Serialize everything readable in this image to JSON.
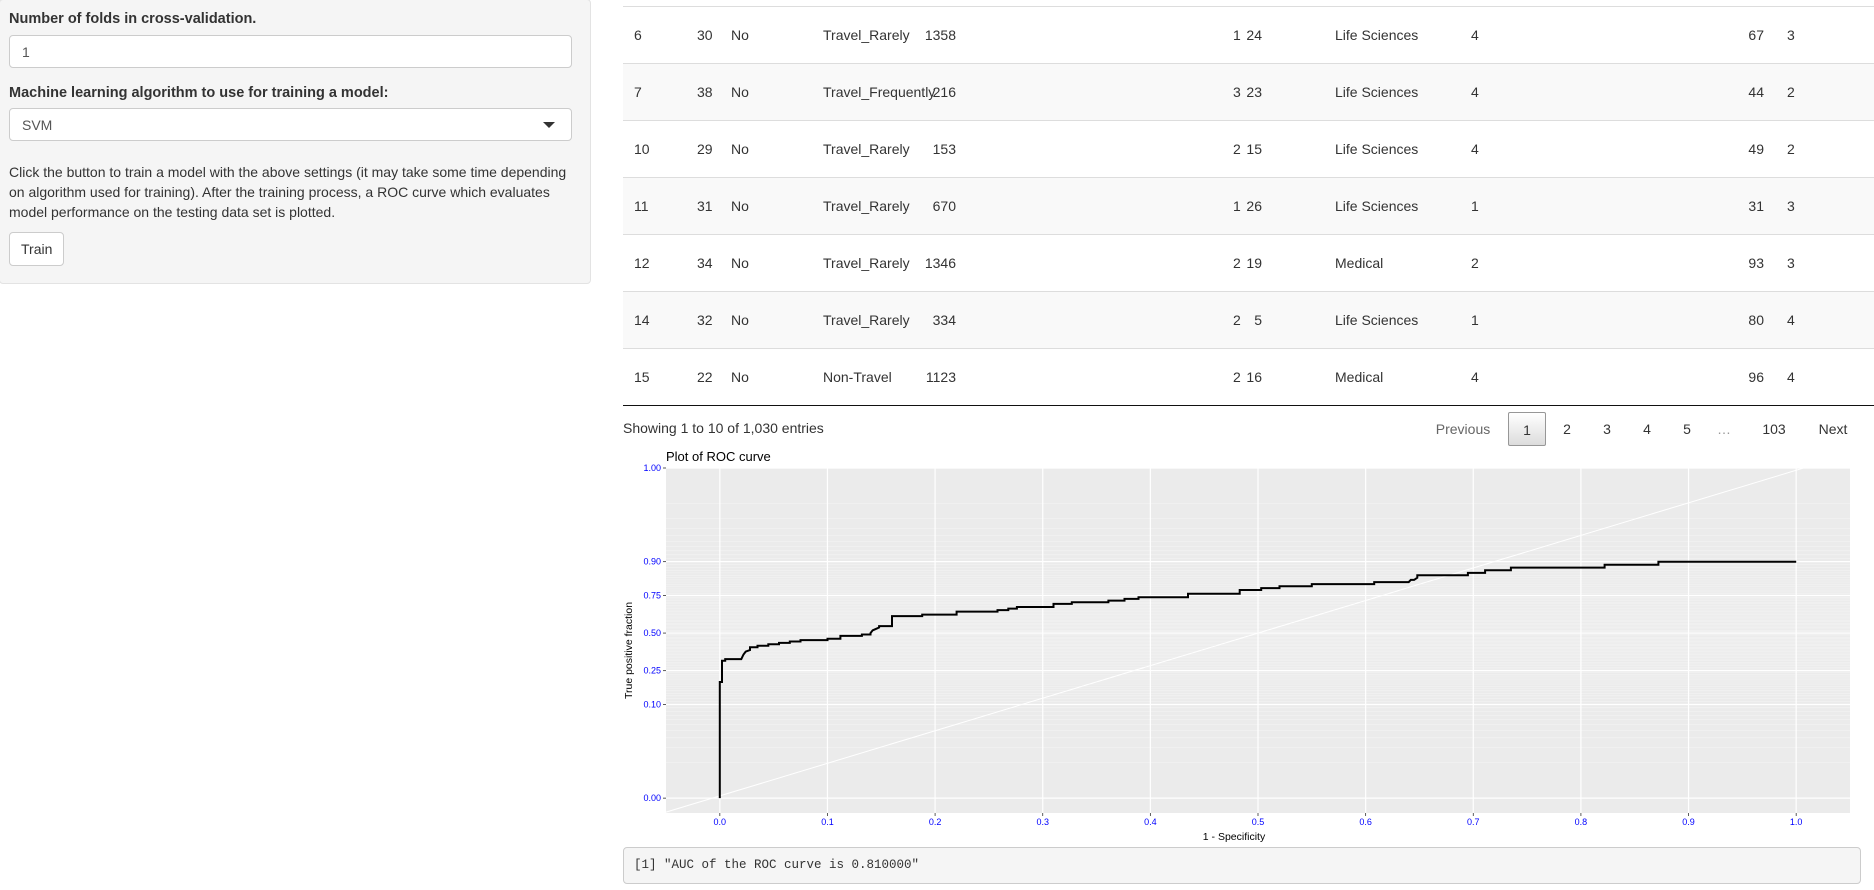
{
  "sidebar": {
    "folds_label": "Number of folds in cross-validation.",
    "folds_value": "1",
    "algo_label": "Machine learning algorithm to use for training a model:",
    "algo_selected": "SVM",
    "help_text": "Click the button to train a model with the above settings (it may take some time depending on algorithm used for training). After the training process, a ROC curve which evaluates model performance on the testing data set is plotted.",
    "train_label": "Train"
  },
  "table": {
    "rows": [
      {
        "id": "6",
        "age": "30",
        "attrition": "No",
        "travel": "Travel_Rarely",
        "daily_rate": "1358",
        "distance": "24",
        "education": "1",
        "field": "Life Sciences",
        "env_sat": "4",
        "hourly": "67",
        "involvement": "3"
      },
      {
        "id": "7",
        "age": "38",
        "attrition": "No",
        "travel": "Travel_Frequently",
        "daily_rate": "216",
        "distance": "23",
        "education": "3",
        "field": "Life Sciences",
        "env_sat": "4",
        "hourly": "44",
        "involvement": "2"
      },
      {
        "id": "10",
        "age": "29",
        "attrition": "No",
        "travel": "Travel_Rarely",
        "daily_rate": "153",
        "distance": "15",
        "education": "2",
        "field": "Life Sciences",
        "env_sat": "4",
        "hourly": "49",
        "involvement": "2"
      },
      {
        "id": "11",
        "age": "31",
        "attrition": "No",
        "travel": "Travel_Rarely",
        "daily_rate": "670",
        "distance": "26",
        "education": "1",
        "field": "Life Sciences",
        "env_sat": "1",
        "hourly": "31",
        "involvement": "3"
      },
      {
        "id": "12",
        "age": "34",
        "attrition": "No",
        "travel": "Travel_Rarely",
        "daily_rate": "1346",
        "distance": "19",
        "education": "2",
        "field": "Medical",
        "env_sat": "2",
        "hourly": "93",
        "involvement": "3"
      },
      {
        "id": "14",
        "age": "32",
        "attrition": "No",
        "travel": "Travel_Rarely",
        "daily_rate": "334",
        "distance": "5",
        "education": "2",
        "field": "Life Sciences",
        "env_sat": "1",
        "hourly": "80",
        "involvement": "4"
      },
      {
        "id": "15",
        "age": "22",
        "attrition": "No",
        "travel": "Non-Travel",
        "daily_rate": "1123",
        "distance": "16",
        "education": "2",
        "field": "Medical",
        "env_sat": "4",
        "hourly": "96",
        "involvement": "4"
      }
    ],
    "info": "Showing 1 to 10 of 1,030 entries",
    "pagination": {
      "previous": "Previous",
      "pages": [
        "1",
        "2",
        "3",
        "4",
        "5"
      ],
      "current": "1",
      "ellipsis": "…",
      "last": "103",
      "next": "Next"
    }
  },
  "chart_data": {
    "type": "line",
    "title": "Plot of ROC curve",
    "xlabel": "1 - Specificity",
    "ylabel": "True positive fraction",
    "xlim": [
      -0.05,
      1.05
    ],
    "ylim": [
      -0.05,
      1.0
    ],
    "y_scale": "probit",
    "x_ticks": [
      "0.0",
      "0.1",
      "0.2",
      "0.3",
      "0.4",
      "0.5",
      "0.6",
      "0.7",
      "0.8",
      "0.9",
      "1.0"
    ],
    "y_ticks": [
      "0.00",
      "0.10",
      "0.25",
      "0.50",
      "0.75",
      "0.90",
      "1.00"
    ],
    "grid": true,
    "tick_label_color": "#0000ff",
    "line_color": "#000000",
    "reference_line_color": "#ffffff",
    "panel_background": "#ebebeb",
    "series": [
      {
        "x": [
          0.0,
          0.0,
          0.002,
          0.002,
          0.005,
          0.005,
          0.02,
          0.022,
          0.024,
          0.028,
          0.028,
          0.035,
          0.035,
          0.045,
          0.045,
          0.055,
          0.055,
          0.065,
          0.065,
          0.075,
          0.075,
          0.1,
          0.1,
          0.112,
          0.112,
          0.132,
          0.132,
          0.14,
          0.14,
          0.142,
          0.145,
          0.148,
          0.148,
          0.16,
          0.16,
          0.188,
          0.188,
          0.22,
          0.22,
          0.258,
          0.258,
          0.262,
          0.268,
          0.268,
          0.276,
          0.276,
          0.31,
          0.31,
          0.327,
          0.327,
          0.361,
          0.361,
          0.376,
          0.376,
          0.389,
          0.389,
          0.435,
          0.435,
          0.483,
          0.483,
          0.503,
          0.503,
          0.52,
          0.52,
          0.55,
          0.55,
          0.608,
          0.608,
          0.64,
          0.642,
          0.645,
          0.648,
          0.648,
          0.695,
          0.695,
          0.711,
          0.711,
          0.735,
          0.735,
          0.822,
          0.822,
          0.872,
          0.872,
          1.0
        ],
        "y": [
          0.0,
          0.19,
          0.19,
          0.31,
          0.31,
          0.32,
          0.32,
          0.35,
          0.37,
          0.38,
          0.4,
          0.4,
          0.41,
          0.41,
          0.42,
          0.42,
          0.43,
          0.43,
          0.44,
          0.44,
          0.45,
          0.45,
          0.46,
          0.46,
          0.48,
          0.48,
          0.49,
          0.49,
          0.5,
          0.52,
          0.53,
          0.54,
          0.55,
          0.55,
          0.62,
          0.62,
          0.63,
          0.63,
          0.65,
          0.65,
          0.66,
          0.66,
          0.66,
          0.67,
          0.67,
          0.68,
          0.68,
          0.7,
          0.7,
          0.71,
          0.71,
          0.72,
          0.72,
          0.73,
          0.73,
          0.74,
          0.74,
          0.76,
          0.76,
          0.78,
          0.78,
          0.79,
          0.79,
          0.8,
          0.8,
          0.81,
          0.81,
          0.82,
          0.82,
          0.83,
          0.83,
          0.84,
          0.85,
          0.85,
          0.86,
          0.86,
          0.87,
          0.87,
          0.88,
          0.88,
          0.89,
          0.89,
          0.9,
          0.9
        ]
      }
    ]
  },
  "output": {
    "text": "[1] \"AUC of the ROC curve is 0.810000\""
  }
}
